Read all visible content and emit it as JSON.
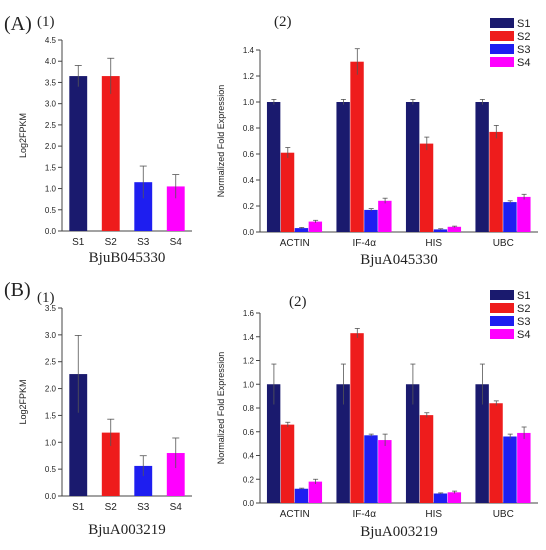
{
  "figure": {
    "panel_labels": [
      "(A)",
      "(B)"
    ],
    "sublabels": [
      "(1)",
      "(2)"
    ]
  },
  "colors": {
    "S1": "#1a1a6e",
    "S2": "#ee1c1c",
    "S3": "#1e1ef0",
    "S4": "#ff00ff",
    "error_bar": "#555555",
    "axis": "#444444"
  },
  "chart_data": [
    {
      "type": "bar",
      "panel": "(A)",
      "sublabel": "(1)",
      "title": "BjuB045330",
      "ylabel": "Log2FPKM",
      "ylim": [
        0,
        4.5
      ],
      "yticks": [
        "0.0",
        "0.5",
        "1.0",
        "1.5",
        "2.0",
        "2.5",
        "3.0",
        "3.5",
        "4.0",
        "4.5"
      ],
      "categories": [
        "S1",
        "S2",
        "S3",
        "S4"
      ],
      "values": [
        3.65,
        3.65,
        1.15,
        1.05
      ],
      "errors": [
        0.25,
        0.42,
        0.38,
        0.28
      ],
      "legend": false
    },
    {
      "type": "bar",
      "panel": "(A)",
      "sublabel": "(2)",
      "title": "BjuA045330",
      "ylabel": "Normalized Fold Expression",
      "ylim": [
        0,
        1.4
      ],
      "yticks": [
        "0.0",
        "0.2",
        "0.4",
        "0.6",
        "0.8",
        "1.0",
        "1.2",
        "1.4"
      ],
      "categories": [
        "ACTIN",
        "IF-4α",
        "HIS",
        "UBC"
      ],
      "series": [
        {
          "name": "S1",
          "values": [
            1.0,
            1.0,
            1.0,
            1.0
          ],
          "errors": [
            0.02,
            0.02,
            0.02,
            0.02
          ]
        },
        {
          "name": "S2",
          "values": [
            0.61,
            1.31,
            0.68,
            0.77
          ],
          "errors": [
            0.04,
            0.1,
            0.05,
            0.05
          ]
        },
        {
          "name": "S3",
          "values": [
            0.03,
            0.17,
            0.02,
            0.23
          ],
          "errors": [
            0.005,
            0.01,
            0.005,
            0.01
          ]
        },
        {
          "name": "S4",
          "values": [
            0.08,
            0.24,
            0.04,
            0.27
          ],
          "errors": [
            0.01,
            0.02,
            0.005,
            0.02
          ]
        }
      ],
      "legend": true,
      "legend_position": "top-right"
    },
    {
      "type": "bar",
      "panel": "(B)",
      "sublabel": "(1)",
      "title": "BjuA003219",
      "ylabel": "Log2FPKM",
      "ylim": [
        0,
        3.5
      ],
      "yticks": [
        "0.0",
        "0.5",
        "1.0",
        "1.5",
        "2.0",
        "2.5",
        "3.0",
        "3.5"
      ],
      "categories": [
        "S1",
        "S2",
        "S3",
        "S4"
      ],
      "values": [
        2.27,
        1.18,
        0.56,
        0.8
      ],
      "errors": [
        0.72,
        0.25,
        0.19,
        0.28
      ],
      "legend": false
    },
    {
      "type": "bar",
      "panel": "(B)",
      "sublabel": "(2)",
      "title": "BjuA003219",
      "ylabel": "Normalized Fold Expression",
      "ylim": [
        0,
        1.6
      ],
      "yticks": [
        "0.0",
        "0.2",
        "0.4",
        "0.6",
        "0.8",
        "1.0",
        "1.2",
        "1.4",
        "1.6"
      ],
      "categories": [
        "ACTIN",
        "IF-4α",
        "HIS",
        "UBC"
      ],
      "series": [
        {
          "name": "S1",
          "values": [
            1.0,
            1.0,
            1.0,
            1.0
          ],
          "errors": [
            0.17,
            0.17,
            0.17,
            0.17
          ]
        },
        {
          "name": "S2",
          "values": [
            0.66,
            1.43,
            0.74,
            0.84
          ],
          "errors": [
            0.02,
            0.04,
            0.02,
            0.02
          ]
        },
        {
          "name": "S3",
          "values": [
            0.12,
            0.57,
            0.08,
            0.56
          ],
          "errors": [
            0.005,
            0.01,
            0.005,
            0.02
          ]
        },
        {
          "name": "S4",
          "values": [
            0.18,
            0.53,
            0.09,
            0.59
          ],
          "errors": [
            0.02,
            0.05,
            0.01,
            0.05
          ]
        }
      ],
      "legend": true,
      "legend_position": "top-right"
    }
  ]
}
